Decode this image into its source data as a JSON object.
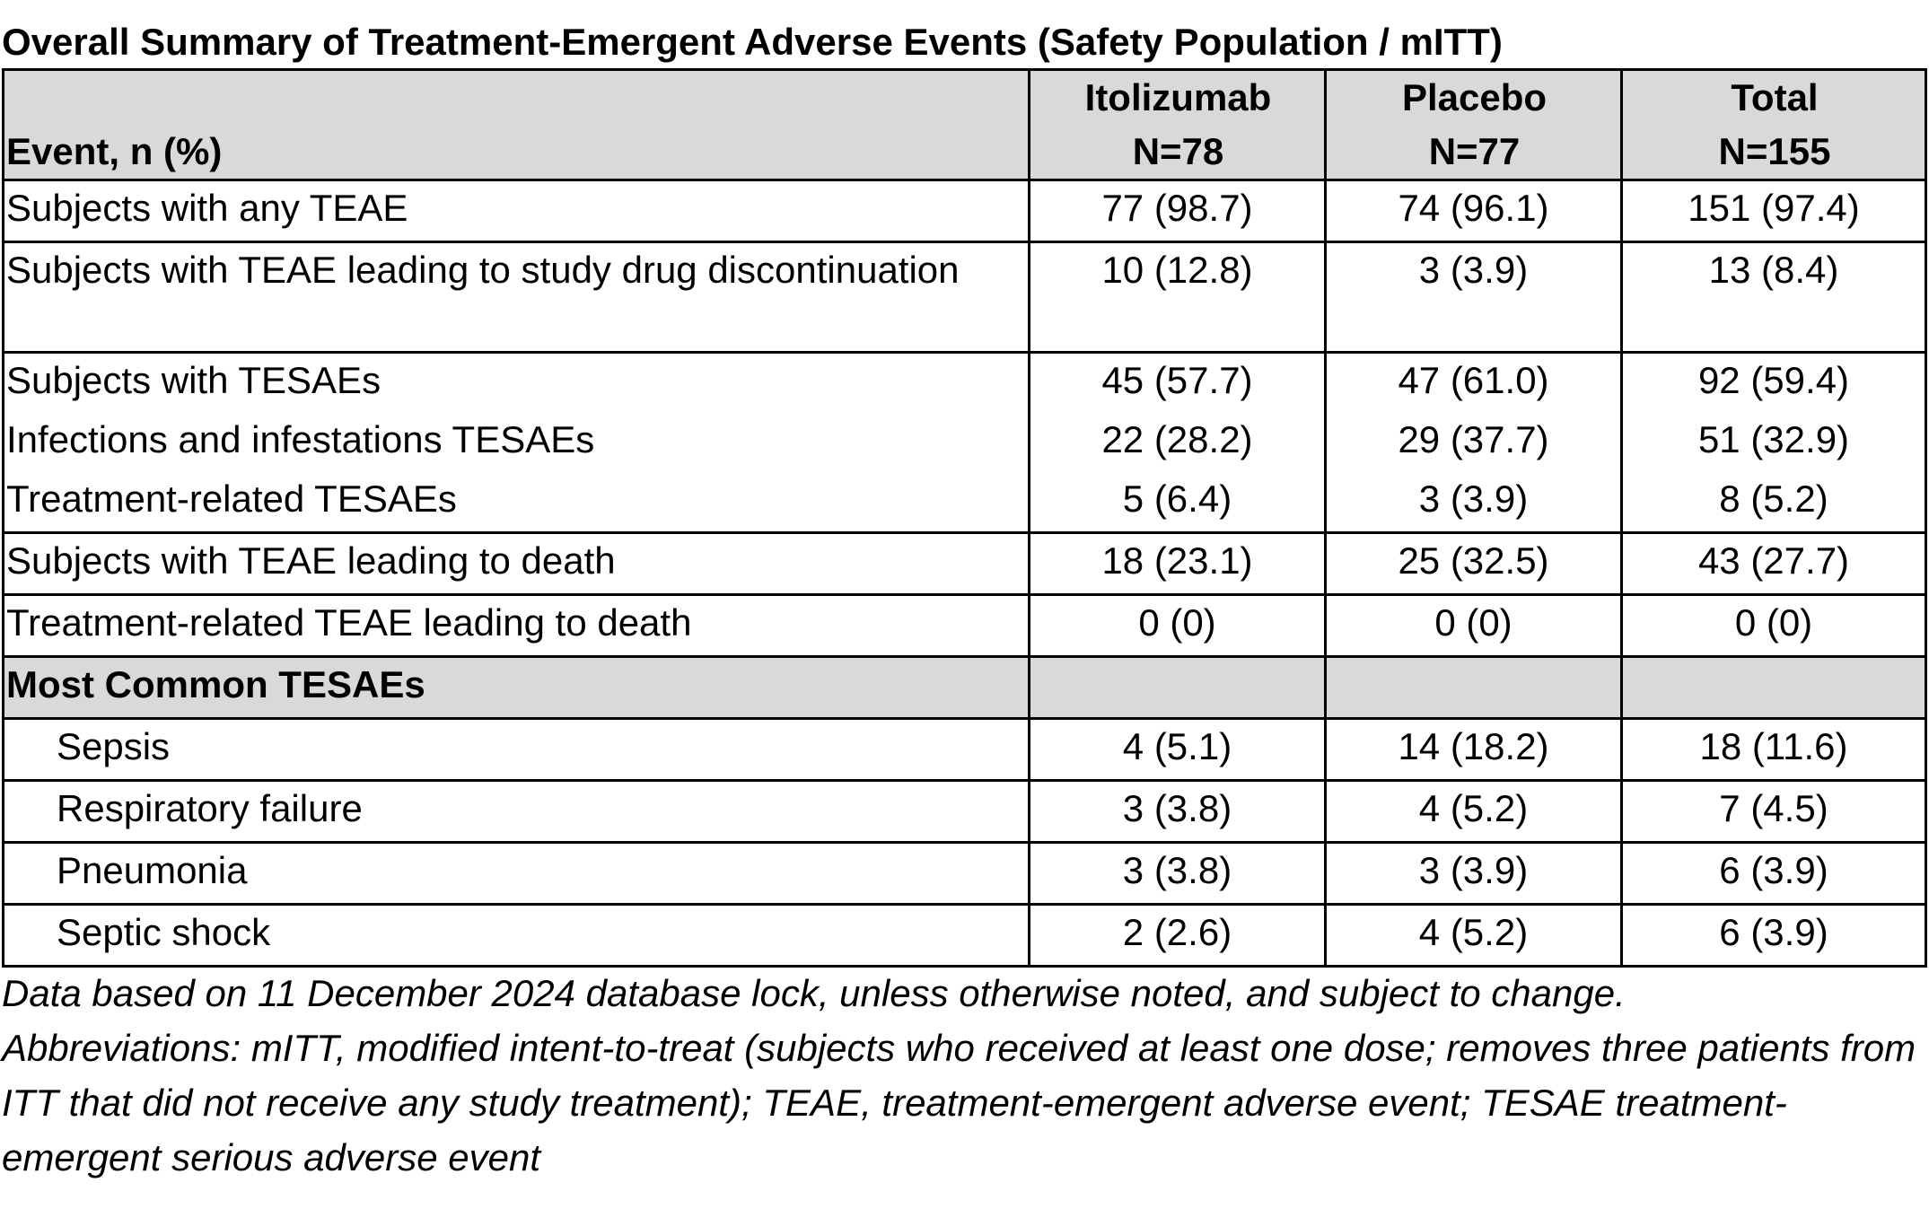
{
  "title": "Overall Summary of Treatment-Emergent Adverse Events (Safety Population / mITT)",
  "header": {
    "event": "Event, n (%)",
    "columns": [
      {
        "name": "Itolizumab",
        "n": "N=78"
      },
      {
        "name": "Placebo",
        "n": "N=77"
      },
      {
        "name": "Total",
        "n": "N=155"
      }
    ]
  },
  "rows": [
    {
      "label": "Subjects with any TEAE",
      "values": [
        "77 (98.7)",
        "74 (96.1)",
        "151 (97.4)"
      ]
    },
    {
      "label": "Subjects with TEAE leading to study drug discontinuation",
      "values": [
        "10 (12.8)",
        "3 (3.9)",
        "13 (8.4)"
      ]
    },
    {
      "label": "Subjects with TESAEs",
      "values": [
        "45 (57.7)",
        "47 (61.0)",
        "92 (59.4)"
      ]
    },
    {
      "label": "Infections and infestations TESAEs",
      "values": [
        "22 (28.2)",
        "29 (37.7)",
        "51 (32.9)"
      ]
    },
    {
      "label": "Treatment-related TESAEs",
      "values": [
        "5 (6.4)",
        "3 (3.9)",
        "8 (5.2)"
      ]
    },
    {
      "label": "Subjects with TEAE leading to death",
      "values": [
        "18 (23.1)",
        "25 (32.5)",
        "43 (27.7)"
      ]
    },
    {
      "label": "Treatment-related TEAE leading to death",
      "values": [
        "0 (0)",
        "0 (0)",
        "0 (0)"
      ]
    }
  ],
  "section": {
    "label": "Most Common TESAEs",
    "rows": [
      {
        "label": "Sepsis",
        "values": [
          "4 (5.1)",
          "14 (18.2)",
          "18 (11.6)"
        ]
      },
      {
        "label": "Respiratory failure",
        "values": [
          "3 (3.8)",
          "4 (5.2)",
          "7 (4.5)"
        ]
      },
      {
        "label": "Pneumonia",
        "values": [
          "3 (3.8)",
          "3 (3.9)",
          "6 (3.9)"
        ]
      },
      {
        "label": "Septic shock",
        "values": [
          "2 (2.6)",
          "4 (5.2)",
          "6 (3.9)"
        ]
      }
    ]
  },
  "footnotes": [
    "Data based on 11 December 2024 database lock, unless otherwise noted, and subject to change.",
    "Abbreviations: mITT, modified intent-to-treat (subjects who received at least one dose; removes three patients from ITT that did not receive any study treatment); TEAE, treatment-emergent adverse event; TESAE treatment-emergent serious adverse event"
  ]
}
